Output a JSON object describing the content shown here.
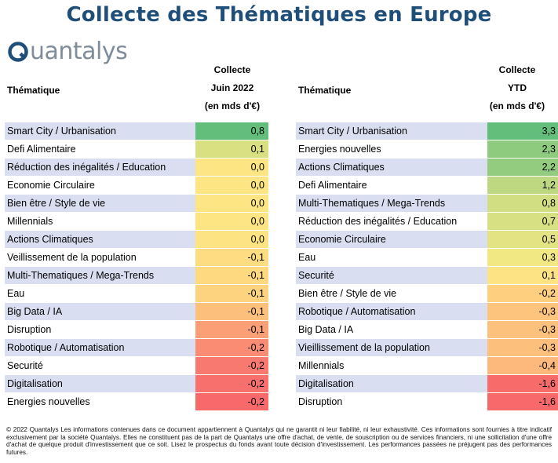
{
  "title": "Collecte des Thématiques en Europe",
  "logo": {
    "text": "uantalys",
    "brand_color": "#1f4e79"
  },
  "left_table": {
    "row_header": "Thématique",
    "col_header_lines": [
      "Collecte",
      "Juin 2022",
      "(en mds d'€)"
    ],
    "rows": [
      {
        "label": "Smart City / Urbanisation",
        "value": "0,8",
        "color": "#63be7b"
      },
      {
        "label": "Defi Alimentaire",
        "value": "0,1",
        "color": "#d8e082"
      },
      {
        "label": "Réduction des inégalités / Education",
        "value": "0,0",
        "color": "#fde583"
      },
      {
        "label": "Economie Circulaire",
        "value": "0,0",
        "color": "#fde583"
      },
      {
        "label": "Bien être / Style de vie",
        "value": "0,0",
        "color": "#fde583"
      },
      {
        "label": "Millennials",
        "value": "0,0",
        "color": "#fde583"
      },
      {
        "label": "Actions Climatiques",
        "value": "0,0",
        "color": "#fee382"
      },
      {
        "label": "Veillissement de la population",
        "value": "-0,1",
        "color": "#fedc81"
      },
      {
        "label": "Multi-Thematiques / Mega-Trends",
        "value": "-0,1",
        "color": "#fed980"
      },
      {
        "label": "Eau",
        "value": "-0,1",
        "color": "#fdd37f"
      },
      {
        "label": "Big Data / IA",
        "value": "-0,1",
        "color": "#fdc07c"
      },
      {
        "label": "Disruption",
        "value": "-0,1",
        "color": "#fa9f76"
      },
      {
        "label": "Robotique / Automatisation",
        "value": "-0,2",
        "color": "#f98c73"
      },
      {
        "label": "Securité",
        "value": "-0,2",
        "color": "#f8796f"
      },
      {
        "label": "Digitalisation",
        "value": "-0,2",
        "color": "#f8706d"
      },
      {
        "label": "Energies nouvelles",
        "value": "-0,2",
        "color": "#f8696b"
      }
    ]
  },
  "right_table": {
    "row_header": "Thématique",
    "col_header_lines": [
      "Collecte",
      "YTD",
      "(en mds d'€)"
    ],
    "rows": [
      {
        "label": "Smart City / Urbanisation",
        "value": "3,3",
        "color": "#63be7b"
      },
      {
        "label": "Energies nouvelles",
        "value": "2,3",
        "color": "#8fcb7e"
      },
      {
        "label": "Actions Climatiques",
        "value": "2,2",
        "color": "#93cc7e"
      },
      {
        "label": "Defi Alimentaire",
        "value": "1,2",
        "color": "#bdd880"
      },
      {
        "label": "Multi-Thematiques / Mega-Trends",
        "value": "0,8",
        "color": "#d2de82"
      },
      {
        "label": "Réduction des inégalités / Education",
        "value": "0,7",
        "color": "#d7e082"
      },
      {
        "label": "Economie Circulaire",
        "value": "0,5",
        "color": "#e3e383"
      },
      {
        "label": "Eau",
        "value": "0,3",
        "color": "#f1e783"
      },
      {
        "label": "Securité",
        "value": "0,1",
        "color": "#fde383"
      },
      {
        "label": "Bien être / Style de vie",
        "value": "-0,2",
        "color": "#fdcf7f"
      },
      {
        "label": "Robotique / Automatisation",
        "value": "-0,3",
        "color": "#fcc47d"
      },
      {
        "label": "Big Data / IA",
        "value": "-0,3",
        "color": "#fcc27d"
      },
      {
        "label": "Vieillissement de la population",
        "value": "-0,3",
        "color": "#fcc07c"
      },
      {
        "label": "Millennials",
        "value": "-0,4",
        "color": "#fcb97b"
      },
      {
        "label": "Digitalisation",
        "value": "-1,6",
        "color": "#f86b6b"
      },
      {
        "label": "Disruption",
        "value": "-1,6",
        "color": "#f8696b"
      }
    ]
  },
  "footer": "© 2022 Quantalys Les informations contenues dans ce document appartiennent à Quantalys qui ne garantit ni leur fiabilité, ni leur exhaustivité. Ces informations sont fournies à titre indicatif exclusivement par la société Quantalys. Elles ne constituent pas de la part de Quantalys une offre d'achat, de vente, de souscription ou de services financiers, ni une sollicitation d'une offre d'achat de quelque produit d'investissement que ce soit. Lisez le prospectus du fonds avant toute décision d'investissement. Les performances passées ne préjugent pas des performances futures."
}
